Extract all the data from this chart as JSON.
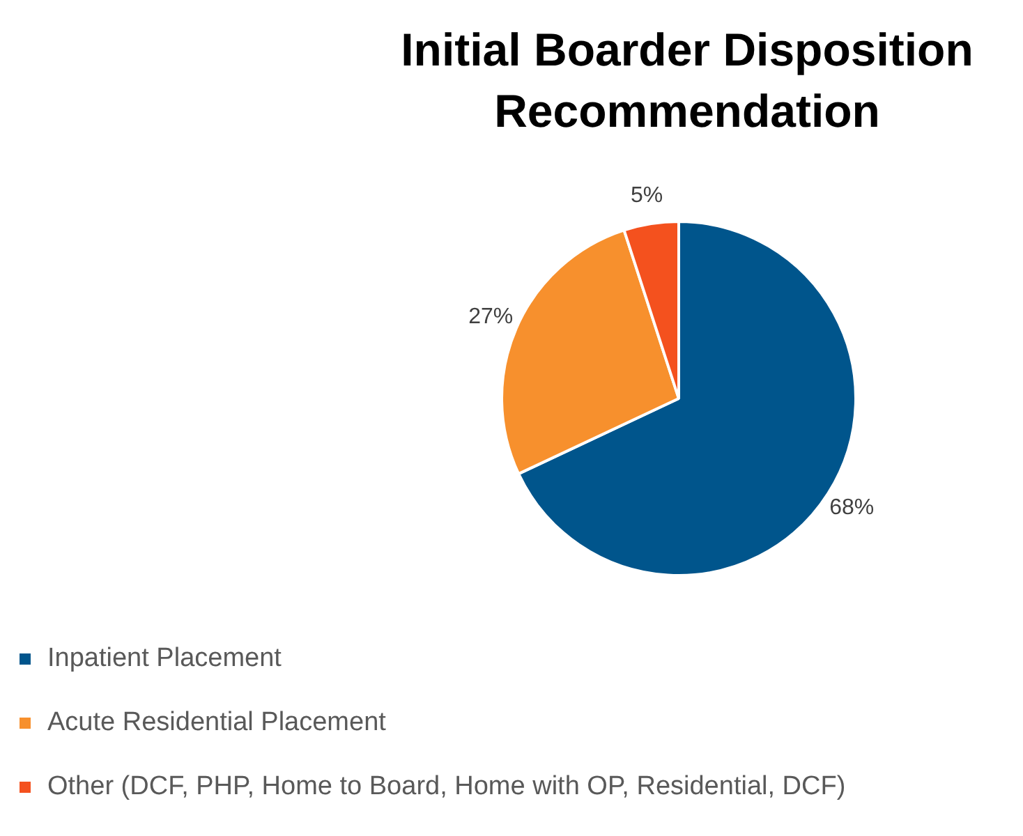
{
  "chart_data": {
    "type": "pie",
    "title": "Initial Boarder Disposition Recommendation",
    "categories": [
      "Inpatient Placement",
      "Acute Residential Placement",
      "Other (DCF, PHP, Home to Board, Home with OP, Residential, DCF)"
    ],
    "values": [
      68,
      27,
      5
    ],
    "colors": [
      "#00558c",
      "#f7902d",
      "#f4511e"
    ],
    "value_labels": [
      "68%",
      "27%",
      "5%"
    ],
    "legend": "bottom left"
  }
}
